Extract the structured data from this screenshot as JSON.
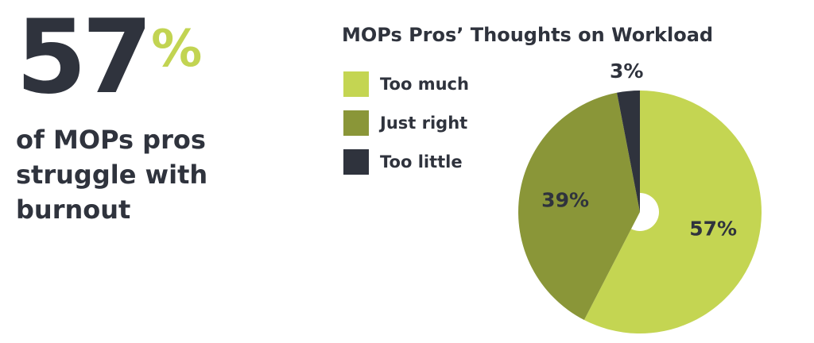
{
  "headline": {
    "number": "57",
    "percent_sign": "%",
    "caption": "of MOPs pros struggle with burnout"
  },
  "chart_data": {
    "type": "pie",
    "title": "MOPs Pros’ Thoughts on Workload",
    "legend_position": "top-left",
    "donut_hole": true,
    "slices": [
      {
        "label": "Too much",
        "value": 57,
        "value_label": "57%",
        "color": "#c4d552"
      },
      {
        "label": "Just right",
        "value": 39,
        "value_label": "39%",
        "color": "#8a9638"
      },
      {
        "label": "Too little",
        "value": 3,
        "value_label": "3%",
        "color": "#2f333d"
      }
    ]
  }
}
